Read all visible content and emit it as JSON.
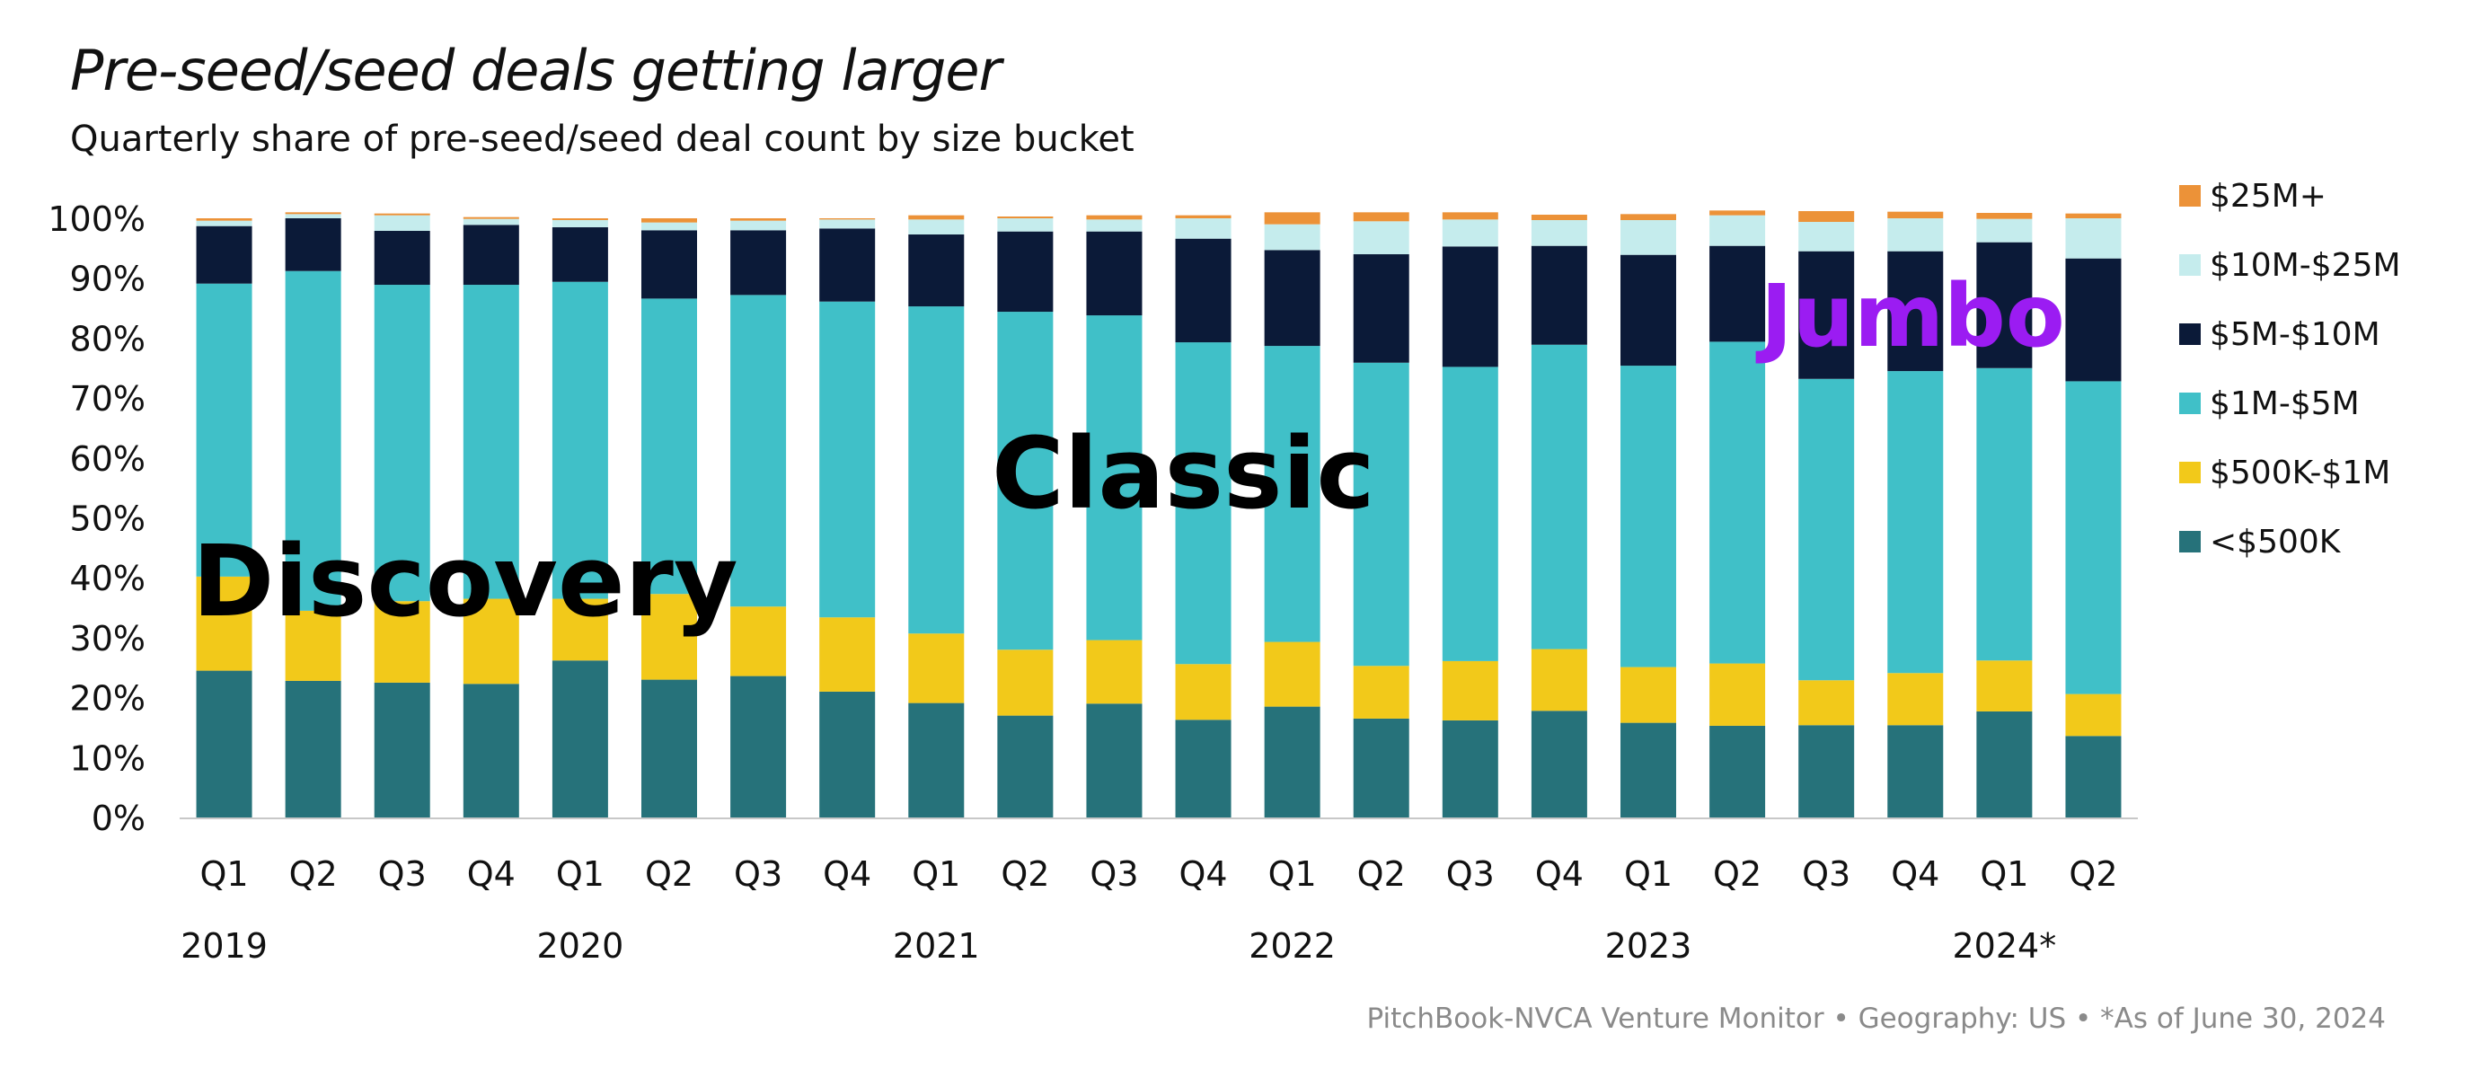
{
  "header": {
    "title": "Pre-seed/seed deals getting larger",
    "subtitle": "Quarterly share of pre-seed/seed deal count by size bucket"
  },
  "footer": {
    "source": "PitchBook-NVCA Venture Monitor  •  Geography: US  •  *As of June 30, 2024"
  },
  "overlays": [
    {
      "text": "Discovery",
      "color": "#000000"
    },
    {
      "text": "Classic",
      "color": "#000000"
    },
    {
      "text": "Jumbo",
      "color": "#9b1cf2"
    }
  ],
  "chart_data": {
    "type": "bar",
    "stacked": true,
    "categories": [
      "Q1",
      "Q2",
      "Q3",
      "Q4",
      "Q1",
      "Q2",
      "Q3",
      "Q4",
      "Q1",
      "Q2",
      "Q3",
      "Q4",
      "Q1",
      "Q2",
      "Q3",
      "Q4",
      "Q1",
      "Q2",
      "Q3",
      "Q4",
      "Q1",
      "Q2"
    ],
    "year_labels": [
      {
        "label": "2019",
        "index": 0
      },
      {
        "label": "2020",
        "index": 4
      },
      {
        "label": "2021",
        "index": 8
      },
      {
        "label": "2022",
        "index": 12
      },
      {
        "label": "2023",
        "index": 16
      },
      {
        "label": "2024*",
        "index": 20
      }
    ],
    "ylim": [
      0,
      100
    ],
    "yticks": [
      "0%",
      "10%",
      "20%",
      "30%",
      "40%",
      "50%",
      "60%",
      "70%",
      "80%",
      "90%",
      "100%"
    ],
    "legend_position": "right",
    "series": [
      {
        "name": "<$500K",
        "color": "#26727a",
        "values": [
          24.5,
          22.8,
          22.5,
          22.3,
          26.2,
          23.0,
          23.6,
          21.0,
          19.1,
          17.0,
          19.0,
          16.3,
          18.5,
          16.5,
          16.2,
          17.8,
          15.8,
          15.3,
          15.4,
          15.4,
          17.7,
          13.6
        ]
      },
      {
        "name": "$500K-$1M",
        "color": "#f2c91a",
        "values": [
          15.7,
          11.7,
          13.6,
          14.2,
          10.3,
          14.3,
          11.6,
          12.4,
          11.6,
          11.0,
          10.6,
          9.3,
          10.8,
          8.8,
          9.9,
          10.3,
          9.3,
          10.4,
          7.5,
          8.7,
          8.5,
          7.0
        ]
      },
      {
        "name": "$1M-$5M",
        "color": "#40c0c8",
        "values": [
          48.9,
          56.7,
          52.8,
          52.4,
          52.9,
          49.3,
          52.0,
          52.7,
          54.6,
          56.4,
          54.2,
          53.7,
          49.4,
          50.6,
          49.1,
          50.8,
          50.3,
          53.7,
          50.3,
          50.4,
          48.8,
          52.2
        ]
      },
      {
        "name": "$5M-$10M",
        "color": "#0b1a38",
        "values": [
          9.6,
          8.8,
          9.0,
          10.0,
          9.1,
          11.4,
          10.8,
          12.2,
          12.0,
          13.4,
          14.0,
          17.3,
          16.0,
          18.1,
          20.1,
          16.5,
          18.5,
          16.0,
          21.3,
          20.0,
          21.0,
          20.5
        ]
      },
      {
        "name": "$10M-$25M",
        "color": "#c5eced",
        "values": [
          0.9,
          0.7,
          2.6,
          1.0,
          1.2,
          1.3,
          1.6,
          1.5,
          2.5,
          2.2,
          2.0,
          3.4,
          4.3,
          5.5,
          4.5,
          4.3,
          5.8,
          5.1,
          4.9,
          5.5,
          3.9,
          6.7
        ]
      },
      {
        "name": "$25M+",
        "color": "#ec9238",
        "values": [
          0.4,
          0.3,
          0.3,
          0.3,
          0.3,
          0.7,
          0.4,
          0.2,
          0.7,
          0.3,
          0.7,
          0.5,
          2.0,
          1.5,
          1.2,
          0.9,
          1.0,
          0.8,
          1.8,
          1.1,
          1.0,
          0.8
        ]
      }
    ]
  }
}
